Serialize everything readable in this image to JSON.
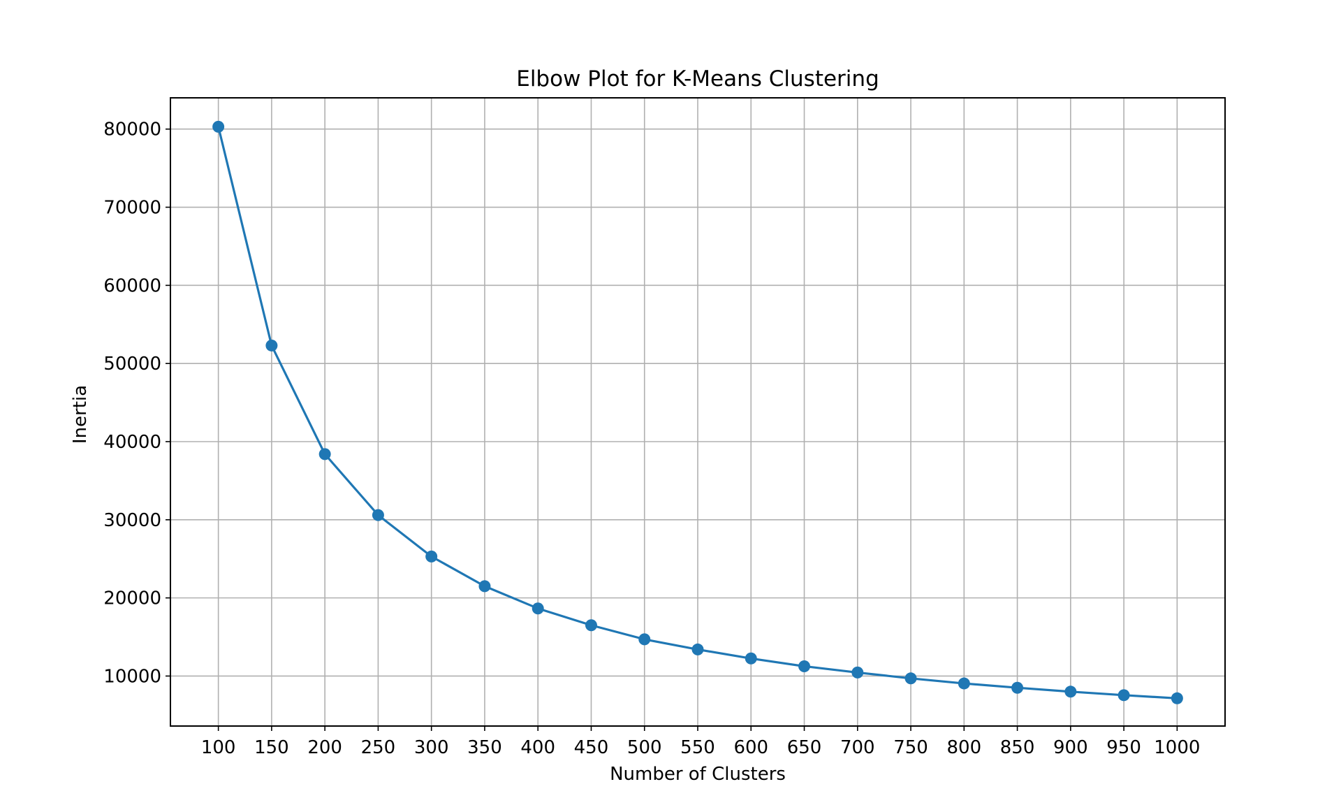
{
  "chart_data": {
    "type": "line",
    "title": "Elbow Plot for K-Means Clustering",
    "xlabel": "Number of Clusters",
    "ylabel": "Inertia",
    "x": [
      100,
      150,
      200,
      250,
      300,
      350,
      400,
      450,
      500,
      550,
      600,
      650,
      700,
      750,
      800,
      850,
      900,
      950,
      1000
    ],
    "x_tick_labels": [
      "100",
      "150",
      "200",
      "250",
      "300",
      "350",
      "400",
      "450",
      "500",
      "550",
      "600",
      "650",
      "700",
      "750",
      "800",
      "850",
      "900",
      "950",
      "1000"
    ],
    "y_ticks": [
      10000,
      20000,
      30000,
      40000,
      50000,
      60000,
      70000,
      80000
    ],
    "y_tick_labels": [
      "10000",
      "20000",
      "30000",
      "40000",
      "50000",
      "60000",
      "70000",
      "80000"
    ],
    "xlim": [
      55,
      1045
    ],
    "ylim": [
      3600,
      84000
    ],
    "grid": true,
    "marker": "circle",
    "series": [
      {
        "values": [
          80300,
          52300,
          38400,
          30600,
          25300,
          21500,
          18650,
          16500,
          14700,
          13400,
          12250,
          11250,
          10450,
          9700,
          9050,
          8500,
          8000,
          7550,
          7150
        ],
        "color": "#1f77b4"
      }
    ]
  }
}
